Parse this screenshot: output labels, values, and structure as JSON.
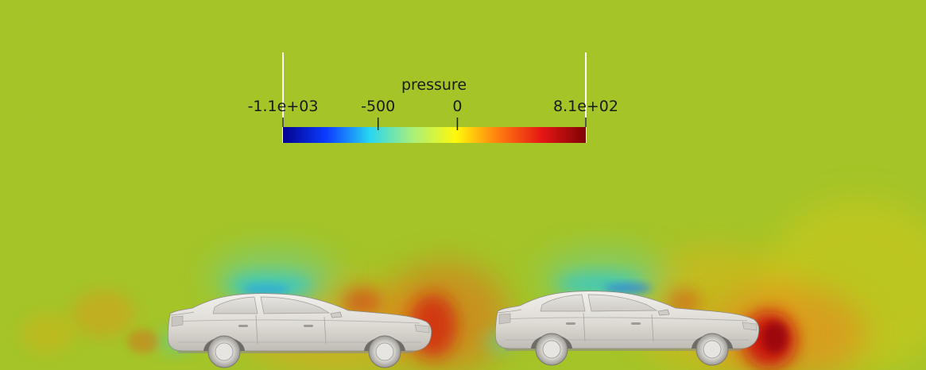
{
  "colorbar": {
    "title": "pressure",
    "min_label": "-1.1e+03",
    "max_label": "8.1e+02",
    "ticks": [
      {
        "label": "-500",
        "value": -500
      },
      {
        "label": "0",
        "value": 0
      }
    ],
    "range": [
      -1100,
      810
    ],
    "colormap": [
      "#04028e",
      "#0b3cff",
      "#27d5f2",
      "#a9f07a",
      "#fff80a",
      "#ff7a10",
      "#e51515",
      "#7e0306"
    ]
  },
  "field": {
    "background_color": "#9ec42b",
    "high_pressure_color": "#d4160f",
    "low_pressure_color": "#36c9c8"
  },
  "objects": [
    {
      "name": "car-left"
    },
    {
      "name": "car-right"
    }
  ]
}
